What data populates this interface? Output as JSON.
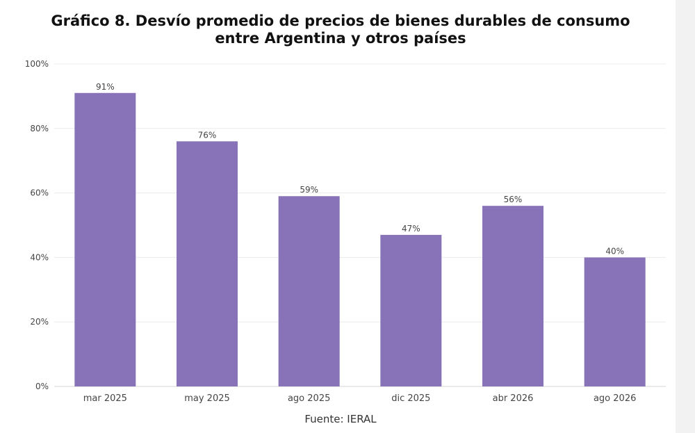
{
  "chart_data": {
    "type": "bar",
    "title_lines": [
      "Gráfico 8. Desvío promedio de precios de bienes durables de consumo",
      "entre Argentina y otros países"
    ],
    "categories": [
      "mar 2025",
      "may 2025",
      "ago 2025",
      "dic 2025",
      "abr 2026",
      "ago 2026"
    ],
    "values": [
      91,
      76,
      59,
      47,
      56,
      40
    ],
    "data_labels": [
      "91%",
      "76%",
      "59%",
      "47%",
      "56%",
      "40%"
    ],
    "y_ticks": [
      "0%",
      "20%",
      "40%",
      "60%",
      "80%",
      "100%"
    ],
    "ylim": [
      0,
      100
    ],
    "grid": true,
    "bar_color": "#8873b8",
    "source": "Fuente: IERAL"
  }
}
